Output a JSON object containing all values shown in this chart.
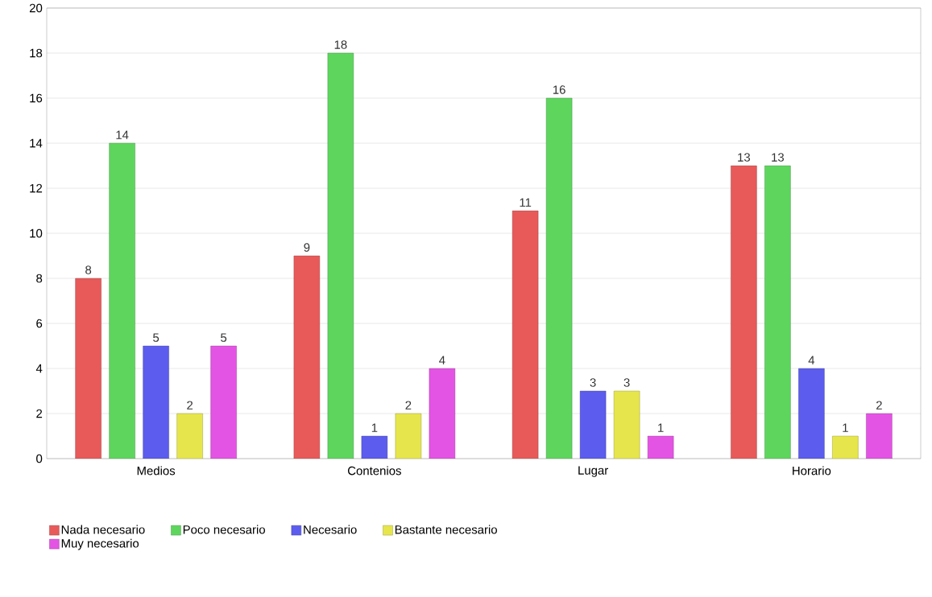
{
  "chart_data": {
    "type": "bar",
    "categories": [
      "Medios",
      "Contenios",
      "Lugar",
      "Horario"
    ],
    "series": [
      {
        "name": "Nada necesario",
        "color": "#e85a5a",
        "values": [
          8,
          9,
          11,
          13
        ]
      },
      {
        "name": "Poco necesario",
        "color": "#5ed65e",
        "values": [
          14,
          18,
          16,
          13
        ]
      },
      {
        "name": "Necesario",
        "color": "#5c5cee",
        "values": [
          5,
          1,
          3,
          4
        ]
      },
      {
        "name": "Bastante necesario",
        "color": "#e6e64c",
        "values": [
          2,
          2,
          3,
          1
        ]
      },
      {
        "name": "Muy necesario",
        "color": "#e454e4",
        "values": [
          5,
          4,
          1,
          2
        ]
      }
    ],
    "ylim": [
      0,
      20
    ],
    "yticks": [
      0,
      2,
      4,
      6,
      8,
      10,
      12,
      14,
      16,
      18,
      20
    ],
    "grid": "y",
    "legend": "bottom",
    "data_labels": true
  }
}
